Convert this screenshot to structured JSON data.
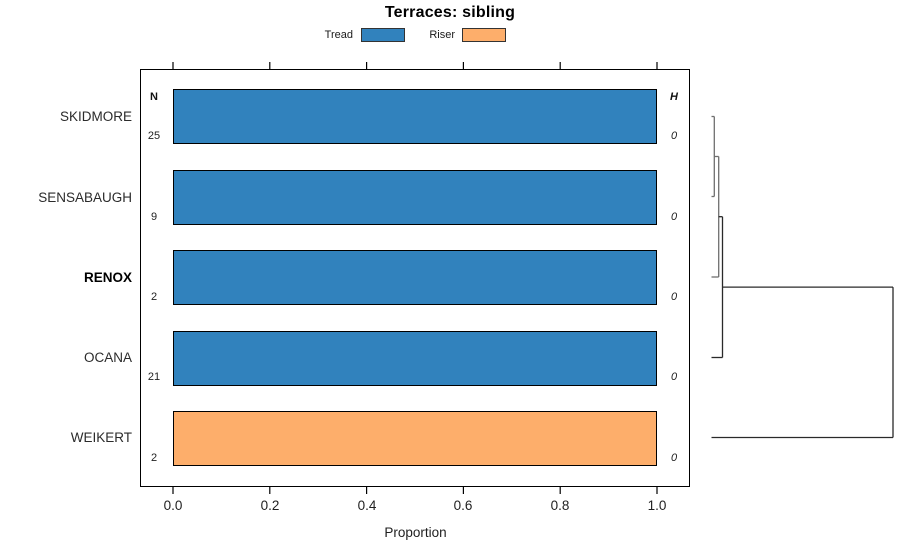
{
  "title": "Terraces: sibling",
  "legend": {
    "position": "top",
    "items": [
      {
        "label": "Tread",
        "color": "#3182bd"
      },
      {
        "label": "Riser",
        "color": "#fdae6b"
      }
    ]
  },
  "chart_data": {
    "type": "bar",
    "orientation": "horizontal",
    "title": "Terraces: sibling",
    "xlabel": "Proportion",
    "xlim": [
      0.0,
      1.0
    ],
    "x_ticks": [
      "0.0",
      "0.2",
      "0.4",
      "0.6",
      "0.8",
      "1.0"
    ],
    "grid": false,
    "legend_position": "top",
    "columns": {
      "n_header": "N",
      "h_header": "H"
    },
    "colors": {
      "tread": "#3182bd",
      "riser": "#fdae6b"
    },
    "rows": [
      {
        "label": "SKIDMORE",
        "n": "25",
        "value": 1.0,
        "series": "Tread",
        "h": "0",
        "bold": false
      },
      {
        "label": "SENSABAUGH",
        "n": "9",
        "value": 1.0,
        "series": "Tread",
        "h": "0",
        "bold": false
      },
      {
        "label": "RENOX",
        "n": "2",
        "value": 1.0,
        "series": "Tread",
        "h": "0",
        "bold": true
      },
      {
        "label": "OCANA",
        "n": "21",
        "value": 1.0,
        "series": "Tread",
        "h": "0",
        "bold": false
      },
      {
        "label": "WEIKERT",
        "n": "2",
        "value": 1.0,
        "series": "Riser",
        "h": "0",
        "bold": false
      }
    ],
    "dendrogram": {
      "side": "right",
      "leaf_order": [
        "SKIDMORE",
        "SENSABAUGH",
        "RENOX",
        "OCANA",
        "WEIKERT"
      ],
      "merges": [
        {
          "joins": [
            "SKIDMORE",
            "SENSABAUGH"
          ],
          "relative_height": "near-zero"
        },
        {
          "joins": [
            "SKIDMORE+SENSABAUGH",
            "RENOX"
          ],
          "relative_height": "near-zero"
        },
        {
          "joins": [
            "SKIDMORE+SENSABAUGH+RENOX",
            "OCANA"
          ],
          "relative_height": "near-zero"
        },
        {
          "joins": [
            "SKIDMORE+SENSABAUGH+RENOX+OCANA",
            "WEIKERT"
          ],
          "relative_height": "large"
        }
      ]
    }
  }
}
